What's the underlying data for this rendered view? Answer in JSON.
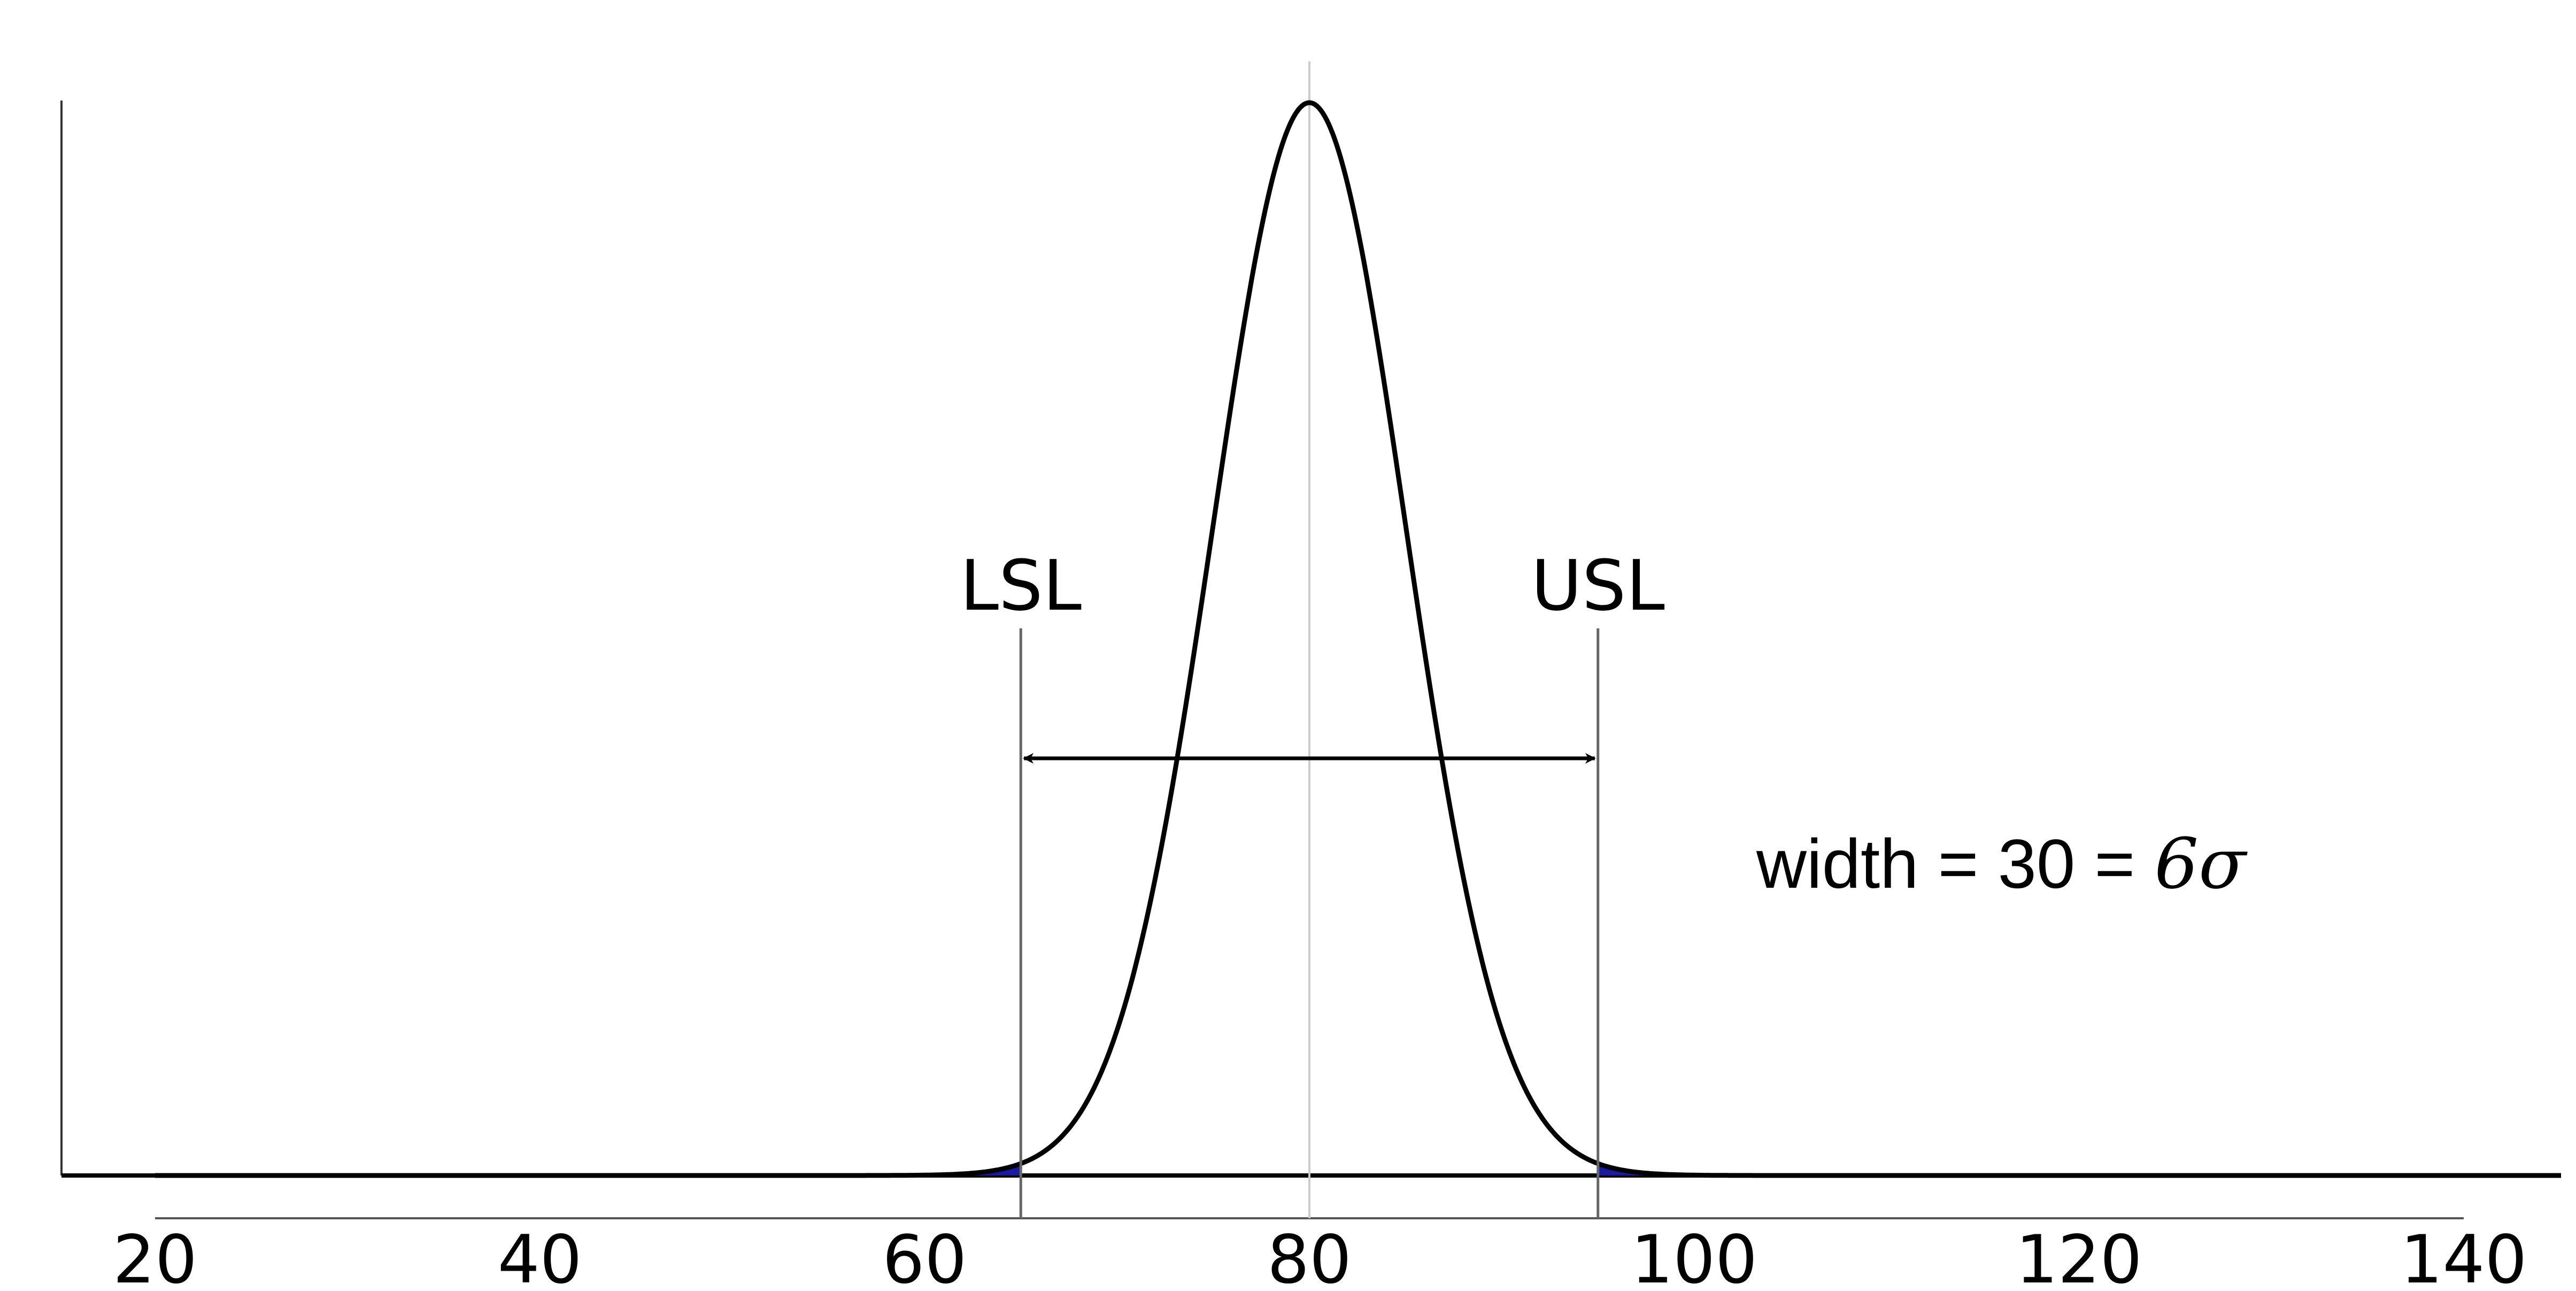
{
  "chart_data": {
    "type": "line",
    "title": "",
    "xlabel": "",
    "ylabel": "",
    "xlim": [
      20,
      140
    ],
    "x_ticks": [
      20,
      40,
      60,
      80,
      100,
      120,
      140
    ],
    "x_tick_labels": [
      "20",
      "40",
      "60",
      "80",
      "100",
      "120",
      "140"
    ],
    "grid": false,
    "series": [
      {
        "distribution": "normal",
        "mean": 80,
        "sigma": 5,
        "line_color": "#000000",
        "tail_fill_color": "#1a1aa0"
      }
    ],
    "spec_limits": [
      {
        "label": "LSL",
        "value": 65
      },
      {
        "label": "USL",
        "value": 95
      }
    ],
    "center_line": {
      "value": 80,
      "color": "#cccccc"
    },
    "annotation": {
      "text": "width = 30 = ",
      "math": "6σ",
      "width_value": 30
    }
  }
}
